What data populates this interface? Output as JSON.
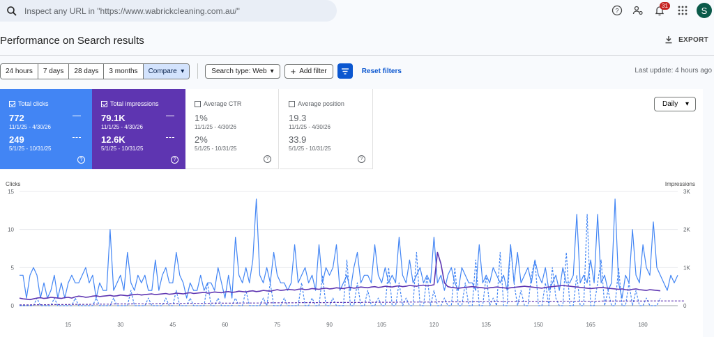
{
  "search": {
    "placeholder": "Inspect any URL in \"https://www.wabrickcleaning.com.au/\""
  },
  "header": {
    "notifications_count": "31",
    "avatar_letter": "S"
  },
  "page": {
    "title": "Performance on Search results",
    "export_label": "EXPORT"
  },
  "filters": {
    "ranges": [
      "24 hours",
      "7 days",
      "28 days",
      "3 months",
      "Compare"
    ],
    "search_type": "Search type: Web",
    "add_filter": "Add filter",
    "reset": "Reset filters",
    "last_update": "Last update: 4 hours ago"
  },
  "metrics": {
    "clicks": {
      "label": "Total clicks",
      "value1": "772",
      "range1": "11/1/25 - 4/30/26",
      "value2": "249",
      "range2": "5/1/25 - 10/31/25"
    },
    "impressions": {
      "label": "Total impressions",
      "value1": "79.1K",
      "range1": "11/1/25 - 4/30/26",
      "value2": "12.6K",
      "range2": "5/1/25 - 10/31/25"
    },
    "ctr": {
      "label": "Average CTR",
      "value1": "1%",
      "range1": "11/1/25 - 4/30/26",
      "value2": "2%",
      "range2": "5/1/25 - 10/31/25"
    },
    "position": {
      "label": "Average position",
      "value1": "19.3",
      "range1": "11/1/25 - 4/30/26",
      "value2": "33.9",
      "range2": "5/1/25 - 10/31/25"
    }
  },
  "granularity": "Daily",
  "chart_data": {
    "type": "line",
    "ylabel": "Clicks",
    "y2label": "Impressions",
    "ylim": [
      0,
      15
    ],
    "y2lim": [
      0,
      3000
    ],
    "yticks": [
      "0",
      "5",
      "10",
      "15"
    ],
    "y2ticks": [
      "0",
      "1K",
      "2K",
      "3K"
    ],
    "xticks": [
      "15",
      "30",
      "45",
      "60",
      "75",
      "90",
      "105",
      "120",
      "135",
      "150",
      "165",
      "180"
    ],
    "colors": {
      "clicks": "#4285f4",
      "impressions": "#5e35b1"
    },
    "series": [
      {
        "axis": "left",
        "style": "solid",
        "color": "#4285f4",
        "values": [
          4,
          4,
          1,
          4,
          5,
          4,
          1,
          3,
          1,
          2,
          4,
          1,
          3,
          1,
          3,
          4,
          3,
          3,
          4,
          5,
          3,
          4,
          1,
          3,
          2,
          2,
          10,
          2,
          3,
          4,
          2,
          7,
          3,
          2,
          4,
          3,
          4,
          2,
          2,
          6,
          2,
          4,
          5,
          3,
          3,
          7,
          4,
          3,
          1,
          3,
          2,
          2,
          4,
          2,
          3,
          3,
          2,
          5,
          3,
          1,
          4,
          1,
          9,
          4,
          3,
          5,
          3,
          6,
          14,
          4,
          3,
          5,
          3,
          7,
          4,
          3,
          3,
          2,
          3,
          8,
          3,
          4,
          5,
          3,
          4,
          2,
          8,
          3,
          5,
          4,
          5,
          8,
          2,
          3,
          4,
          2,
          5,
          7,
          3,
          4,
          4,
          3,
          8,
          4,
          3,
          5,
          3,
          4,
          3,
          9,
          4,
          3,
          6,
          3,
          4,
          5,
          3,
          4,
          3,
          9,
          3,
          4,
          2,
          4,
          5,
          3,
          2,
          5,
          4,
          3,
          3,
          2,
          8,
          3,
          4,
          3,
          5,
          4,
          3,
          4,
          2,
          8,
          3,
          7,
          3,
          4,
          5,
          3,
          6,
          4,
          3,
          5,
          2,
          3,
          4,
          2,
          5,
          3,
          3,
          4,
          12,
          3,
          4,
          3,
          6,
          3,
          12,
          3,
          4,
          2,
          3,
          14,
          3,
          1,
          4,
          3,
          10,
          4,
          3,
          8,
          5,
          4,
          11,
          5,
          4,
          3,
          2,
          4,
          3,
          4
        ]
      },
      {
        "axis": "left",
        "style": "dashed",
        "color": "#4285f4",
        "values": [
          0,
          0,
          0,
          0,
          0,
          1,
          0,
          0,
          0,
          0,
          1,
          0,
          0,
          0,
          0,
          0,
          1,
          0,
          0,
          0,
          0,
          0,
          1,
          0,
          0,
          0,
          0,
          1,
          0,
          0,
          0,
          0,
          2,
          0,
          0,
          0,
          0,
          1,
          0,
          0,
          0,
          0,
          1,
          0,
          0,
          2,
          0,
          0,
          0,
          1,
          0,
          0,
          0,
          0,
          3,
          0,
          0,
          1,
          0,
          0,
          0,
          0,
          1,
          0,
          0,
          2,
          0,
          0,
          0,
          0,
          1,
          0,
          3,
          0,
          0,
          0,
          1,
          0,
          0,
          0,
          0,
          3,
          0,
          0,
          1,
          0,
          0,
          4,
          0,
          0,
          1,
          0,
          0,
          0,
          6,
          0,
          0,
          3,
          0,
          0,
          2,
          0,
          0,
          1,
          0,
          0,
          5,
          0,
          0,
          3,
          0,
          1,
          0,
          0,
          7,
          0,
          0,
          4,
          0,
          2,
          0,
          0,
          1,
          0,
          0,
          5,
          0,
          0,
          3,
          0,
          0,
          6,
          0,
          0,
          4,
          0,
          1,
          0,
          7,
          0,
          0,
          8,
          3,
          0,
          2,
          0,
          0,
          4,
          6,
          0,
          0,
          3,
          0,
          5,
          1,
          0,
          0,
          7,
          0,
          0,
          4,
          0,
          0,
          12,
          0,
          0,
          3,
          6,
          0,
          2,
          0,
          0,
          5,
          0,
          0,
          3,
          0,
          2,
          0,
          0,
          1,
          0,
          0,
          0,
          1
        ]
      },
      {
        "axis": "right",
        "style": "solid",
        "color": "#5e35b1",
        "values": [
          200,
          180,
          170,
          160,
          180,
          200,
          210,
          190,
          200,
          220,
          210,
          200,
          190,
          210,
          220,
          200,
          230,
          250,
          240,
          220,
          230,
          250,
          260,
          240,
          250,
          260,
          270,
          250,
          260,
          280,
          270,
          260,
          280,
          290,
          300,
          280,
          290,
          300,
          310,
          290,
          300,
          310,
          320,
          300,
          310,
          330,
          320,
          310,
          330,
          340,
          320,
          330,
          340,
          350,
          330,
          340,
          360,
          350,
          340,
          360,
          370,
          350,
          360,
          380,
          370,
          360,
          380,
          390,
          370,
          380,
          400,
          390,
          380,
          400,
          420,
          400,
          410,
          430,
          420,
          410,
          430,
          440,
          420,
          430,
          450,
          440,
          430,
          450,
          460,
          440,
          450,
          470,
          460,
          450,
          470,
          480,
          460,
          470,
          490,
          480,
          470,
          490,
          500,
          480,
          490,
          510,
          500,
          490,
          510,
          520,
          500,
          510,
          530,
          520,
          510,
          530,
          540,
          520,
          530,
          550,
          1400,
          1100,
          600,
          500,
          480,
          470,
          460,
          470,
          480,
          490,
          500,
          490,
          480,
          470,
          460,
          470,
          480,
          490,
          480,
          470,
          460,
          470,
          480,
          490,
          500,
          510,
          500,
          490,
          480,
          470,
          460,
          480,
          490,
          500,
          510,
          520,
          530,
          520,
          510,
          500,
          490,
          480,
          470,
          460,
          450,
          460,
          470,
          480,
          470,
          460,
          450,
          440,
          430,
          440,
          420,
          410,
          430,
          440,
          420,
          410,
          400,
          420,
          410,
          400,
          390
        ]
      },
      {
        "axis": "right",
        "style": "dashed",
        "color": "#5e35b1",
        "values": [
          20,
          20,
          20,
          20,
          25,
          25,
          25,
          25,
          25,
          30,
          30,
          30,
          30,
          30,
          30,
          35,
          35,
          35,
          35,
          35,
          35,
          40,
          40,
          40,
          40,
          40,
          40,
          45,
          45,
          45,
          45,
          45,
          45,
          50,
          50,
          50,
          50,
          50,
          50,
          50,
          55,
          55,
          55,
          55,
          55,
          55,
          55,
          60,
          60,
          60,
          60,
          60,
          60,
          60,
          60,
          65,
          65,
          65,
          65,
          65,
          65,
          65,
          65,
          70,
          70,
          70,
          70,
          70,
          70,
          70,
          70,
          75,
          75,
          75,
          75,
          75,
          75,
          75,
          75,
          75,
          80,
          80,
          80,
          80,
          80,
          80,
          80,
          80,
          80,
          85,
          85,
          85,
          85,
          85,
          85,
          85,
          85,
          85,
          85,
          90,
          90,
          90,
          90,
          90,
          90,
          90,
          90,
          90,
          90,
          95,
          95,
          95,
          95,
          95,
          95,
          95,
          95,
          95,
          95,
          95,
          100,
          100,
          100,
          100,
          100,
          100,
          100,
          100,
          100,
          100,
          100,
          105,
          105,
          105,
          105,
          105,
          105,
          105,
          105,
          105,
          105,
          105,
          105,
          110,
          110,
          110,
          110,
          110,
          110,
          110,
          110,
          110,
          110,
          110,
          110,
          115,
          115,
          115,
          115,
          115,
          115,
          115,
          115,
          115,
          115,
          115,
          115,
          120,
          120,
          120,
          120,
          120,
          120,
          120,
          120,
          120,
          120,
          120,
          120,
          120,
          125,
          125,
          125,
          125,
          125,
          125,
          125,
          125,
          125,
          125,
          125,
          125
        ]
      }
    ]
  }
}
